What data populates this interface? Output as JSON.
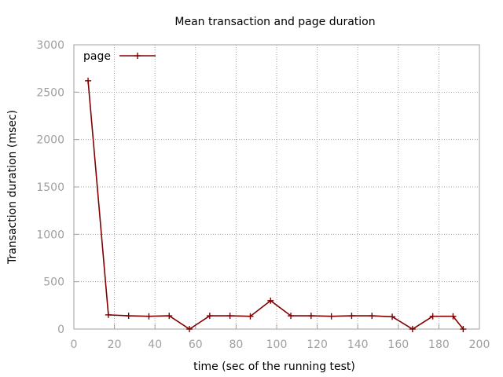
{
  "chart_data": {
    "type": "line",
    "title": "Mean transaction and page duration",
    "xlabel": "time (sec of the running test)",
    "ylabel": "Transaction duration (msec)",
    "xlim": [
      0,
      200
    ],
    "ylim": [
      0,
      3000
    ],
    "xticks": [
      0,
      20,
      40,
      60,
      80,
      100,
      120,
      140,
      160,
      180,
      200
    ],
    "yticks": [
      0,
      500,
      1000,
      1500,
      2000,
      2500,
      3000
    ],
    "grid": true,
    "legend_position": "top-left",
    "series": [
      {
        "name": "page",
        "color": "#800000",
        "marker": "plus",
        "x": [
          7,
          17,
          27,
          37,
          47,
          57,
          67,
          77,
          87,
          97,
          107,
          117,
          127,
          137,
          147,
          157,
          167,
          177,
          187,
          192
        ],
        "y": [
          2620,
          150,
          140,
          135,
          140,
          0,
          140,
          140,
          135,
          300,
          140,
          140,
          135,
          140,
          140,
          130,
          0,
          135,
          135,
          0
        ]
      }
    ]
  }
}
